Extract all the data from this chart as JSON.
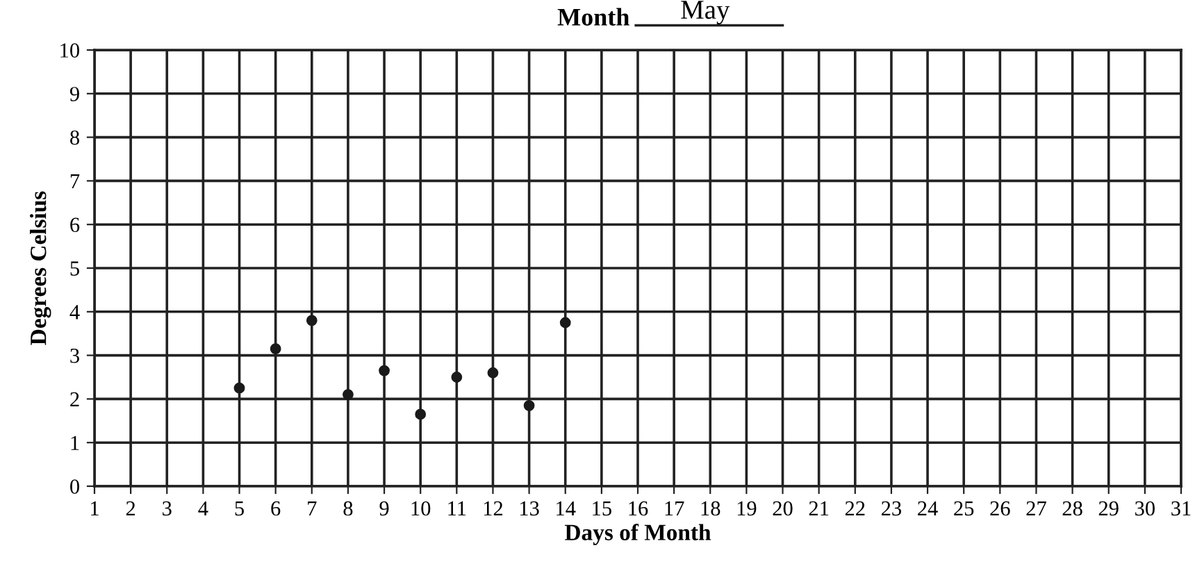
{
  "chart_data": {
    "type": "scatter",
    "title": "Month",
    "subtitle": "May",
    "xlabel": "Days of Month",
    "ylabel": "Degrees Celsius",
    "x": [
      5,
      6,
      7,
      8,
      9,
      10,
      11,
      12,
      13,
      14
    ],
    "values": [
      2.25,
      3.15,
      3.8,
      2.1,
      2.65,
      1.65,
      2.5,
      2.6,
      1.85,
      3.75
    ],
    "color": "#1a1a1a",
    "marker": "circle",
    "xlim": [
      1,
      31
    ],
    "xticks": [
      1,
      2,
      3,
      4,
      5,
      6,
      7,
      8,
      9,
      10,
      11,
      12,
      13,
      14,
      15,
      16,
      17,
      18,
      19,
      20,
      21,
      22,
      23,
      24,
      25,
      26,
      27,
      28,
      29,
      30,
      31
    ],
    "ylim": [
      0,
      10
    ],
    "yticks": [
      0,
      1,
      2,
      3,
      4,
      5,
      6,
      7,
      8,
      9,
      10
    ],
    "grid": true,
    "legend": false
  }
}
